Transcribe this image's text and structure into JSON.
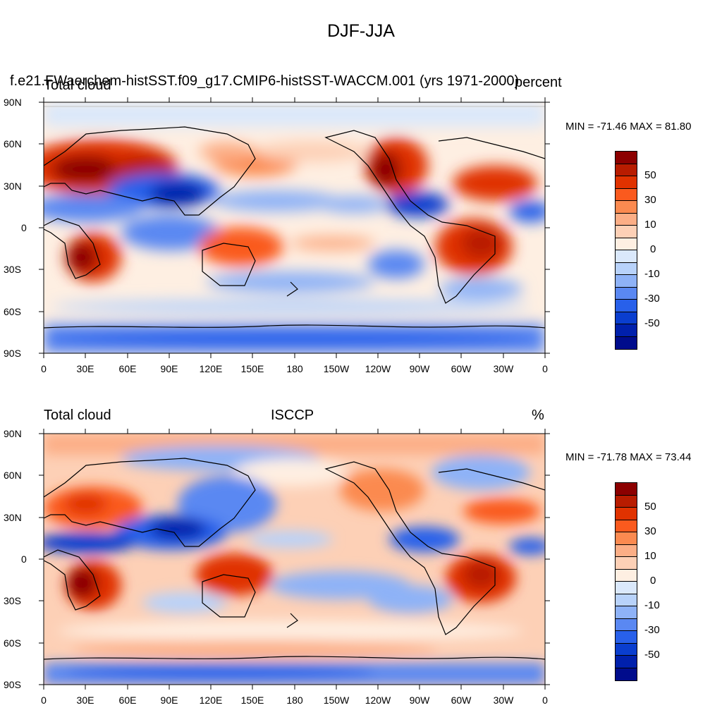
{
  "main_title": "DJF-JJA",
  "case_title": "f.e21.FWaerchem-histSST.f09_g17.CMIP6-histSST-WACCM.001 (yrs 1971-2000)",
  "panels": [
    {
      "left_string": "Total cloud",
      "center_string": "",
      "right_string": "percent",
      "minmax": "MIN = -71.46 MAX =  81.80"
    },
    {
      "left_string": "Total cloud",
      "center_string": "ISCCP",
      "right_string": "%",
      "minmax": "MIN = -71.78 MAX =  73.44"
    }
  ],
  "lat_labels": [
    "90N",
    "60N",
    "30N",
    "0",
    "30S",
    "60S",
    "90S"
  ],
  "lon_labels": [
    "0",
    "30E",
    "60E",
    "90E",
    "120E",
    "150E",
    "180",
    "150W",
    "120W",
    "90W",
    "60W",
    "30W",
    "0"
  ],
  "colorbar": {
    "colors": [
      "#8c0000",
      "#b81c00",
      "#e03200",
      "#fa5a1e",
      "#fb8a50",
      "#fcae86",
      "#fdd0b6",
      "#feefe2",
      "#dae8fb",
      "#b8d2fa",
      "#8eb2f7",
      "#5a88f2",
      "#2860ea",
      "#0a3ecf",
      "#0020ac",
      "#000c8c"
    ],
    "labels": [
      "50",
      "30",
      "10",
      "0",
      "-10",
      "-30",
      "-50"
    ]
  }
}
